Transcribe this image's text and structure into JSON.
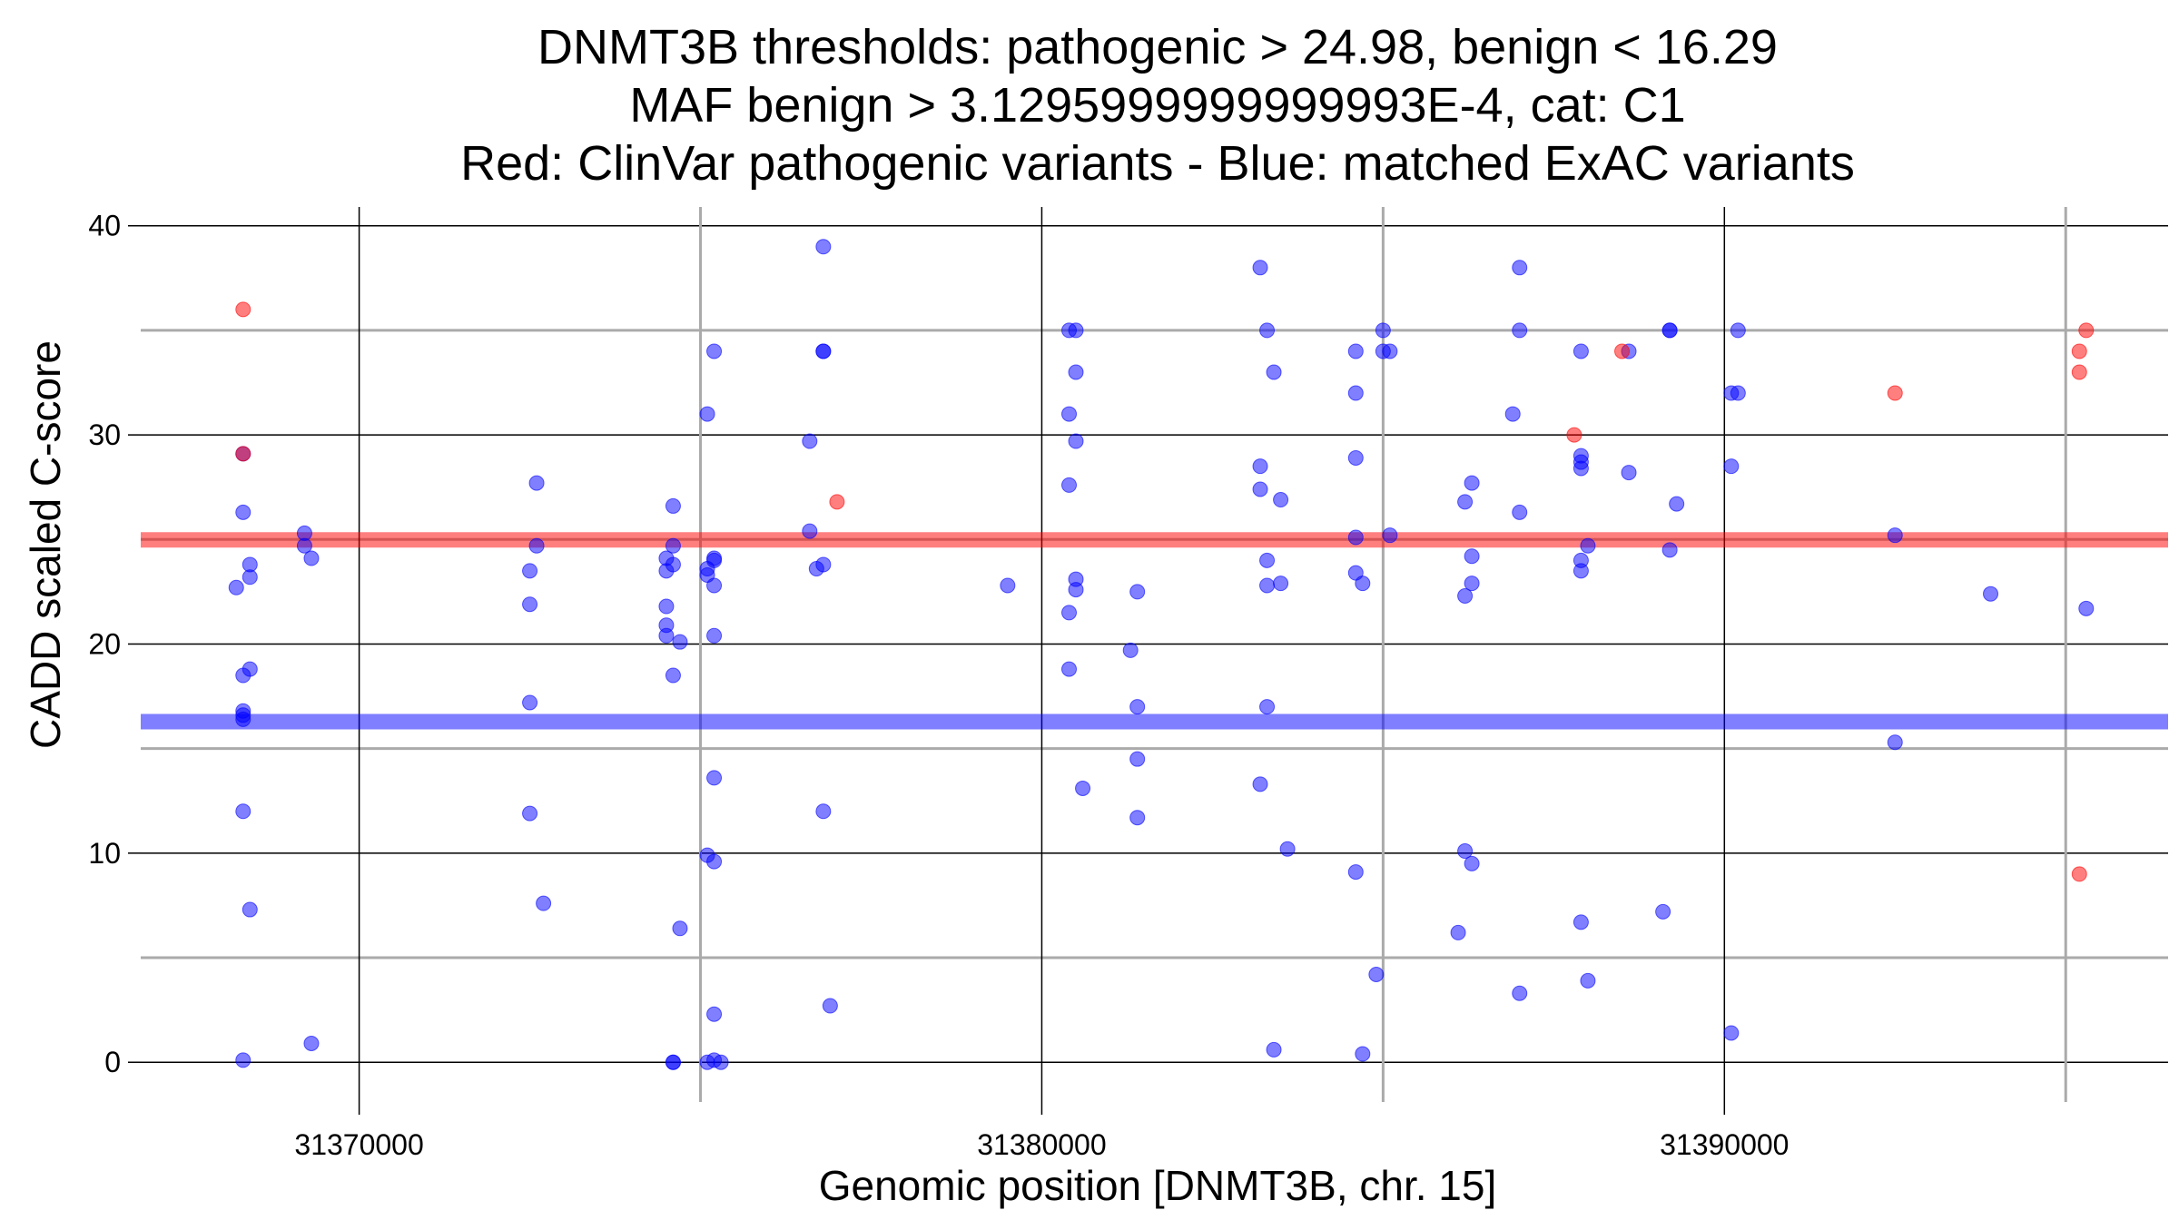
{
  "chart_data": {
    "type": "scatter",
    "title": [
      "DNMT3B thresholds: pathogenic > 24.98, benign < 16.29",
      "MAF benign > 3.1295999999999993E-4, cat: C1",
      "Red: ClinVar pathogenic variants - Blue: matched ExAC variants"
    ],
    "xlabel": "Genomic position [DNMT3B, chr. 15]",
    "ylabel": "CADD scaled C-score",
    "xlim": [
      31366800,
      31396500
    ],
    "ylim": [
      -1.9,
      40.9
    ],
    "x_ticks": [
      31370000,
      31380000,
      31390000
    ],
    "x_tick_labels": [
      "31370000",
      "31380000",
      "31390000"
    ],
    "y_ticks": [
      0,
      10,
      20,
      30,
      40
    ],
    "y_tick_labels": [
      "0",
      "10",
      "20",
      "30",
      "40"
    ],
    "grid": true,
    "thresholds": {
      "pathogenic": {
        "value": 24.98,
        "color": "#ff0000"
      },
      "benign": {
        "value": 16.29,
        "color": "#0000ff"
      }
    },
    "series": [
      {
        "color": "#ff0000",
        "points": [
          [
            31368300,
            36
          ],
          [
            31368300,
            29.1
          ],
          [
            31377000,
            26.8
          ],
          [
            31387800,
            30
          ],
          [
            31388500,
            34
          ],
          [
            31392500,
            32
          ],
          [
            31395300,
            35
          ],
          [
            31395200,
            34
          ],
          [
            31395200,
            33
          ],
          [
            31395200,
            9
          ]
        ]
      },
      {
        "color": "#0000ff",
        "points": [
          [
            31368300,
            29.1
          ],
          [
            31368300,
            26.3
          ],
          [
            31368400,
            23.8
          ],
          [
            31368400,
            23.2
          ],
          [
            31368200,
            22.7
          ],
          [
            31368400,
            18.8
          ],
          [
            31368300,
            18.5
          ],
          [
            31368300,
            16.8
          ],
          [
            31368300,
            16.6
          ],
          [
            31368300,
            16.4
          ],
          [
            31368300,
            12
          ],
          [
            31368400,
            7.3
          ],
          [
            31368300,
            0.1
          ],
          [
            31369200,
            25.3
          ],
          [
            31369200,
            24.7
          ],
          [
            31369300,
            24.1
          ],
          [
            31369300,
            0.9
          ],
          [
            31372600,
            27.7
          ],
          [
            31372600,
            24.7
          ],
          [
            31372500,
            23.5
          ],
          [
            31372500,
            21.9
          ],
          [
            31372500,
            17.2
          ],
          [
            31372500,
            11.9
          ],
          [
            31372700,
            7.6
          ],
          [
            31374600,
            26.6
          ],
          [
            31374600,
            24.7
          ],
          [
            31374500,
            24.1
          ],
          [
            31374600,
            23.8
          ],
          [
            31374500,
            23.5
          ],
          [
            31374500,
            21.8
          ],
          [
            31374500,
            20.9
          ],
          [
            31374500,
            20.4
          ],
          [
            31374700,
            20.1
          ],
          [
            31374600,
            18.5
          ],
          [
            31374700,
            6.4
          ],
          [
            31374600,
            0
          ],
          [
            31374600,
            0
          ],
          [
            31375100,
            31
          ],
          [
            31375200,
            34
          ],
          [
            31375200,
            24
          ],
          [
            31375200,
            24.1
          ],
          [
            31375100,
            23.6
          ],
          [
            31375100,
            23.3
          ],
          [
            31375200,
            22.8
          ],
          [
            31375200,
            20.4
          ],
          [
            31375200,
            13.6
          ],
          [
            31375100,
            9.9
          ],
          [
            31375200,
            9.6
          ],
          [
            31375200,
            2.3
          ],
          [
            31375100,
            0
          ],
          [
            31375200,
            0.1
          ],
          [
            31375300,
            0
          ],
          [
            31376800,
            39
          ],
          [
            31376800,
            34
          ],
          [
            31376800,
            34
          ],
          [
            31376600,
            29.7
          ],
          [
            31376600,
            25.4
          ],
          [
            31376700,
            23.6
          ],
          [
            31376800,
            23.8
          ],
          [
            31376800,
            12
          ],
          [
            31376900,
            2.7
          ],
          [
            31379500,
            22.8
          ],
          [
            31380400,
            35
          ],
          [
            31380500,
            35
          ],
          [
            31380500,
            33
          ],
          [
            31380400,
            31
          ],
          [
            31380500,
            29.7
          ],
          [
            31380400,
            27.6
          ],
          [
            31380500,
            23.1
          ],
          [
            31380500,
            22.6
          ],
          [
            31380400,
            21.5
          ],
          [
            31380400,
            18.8
          ],
          [
            31380600,
            13.1
          ],
          [
            31381400,
            22.5
          ],
          [
            31381300,
            19.7
          ],
          [
            31381400,
            17
          ],
          [
            31381400,
            14.5
          ],
          [
            31381400,
            11.7
          ],
          [
            31383200,
            38
          ],
          [
            31383300,
            35
          ],
          [
            31383400,
            33
          ],
          [
            31383200,
            28.5
          ],
          [
            31383200,
            27.4
          ],
          [
            31383500,
            26.9
          ],
          [
            31383300,
            24
          ],
          [
            31383300,
            22.8
          ],
          [
            31383500,
            22.9
          ],
          [
            31383300,
            17
          ],
          [
            31383200,
            13.3
          ],
          [
            31383600,
            10.2
          ],
          [
            31383400,
            0.6
          ],
          [
            31384600,
            34
          ],
          [
            31384600,
            32
          ],
          [
            31384600,
            28.9
          ],
          [
            31384600,
            25.1
          ],
          [
            31384600,
            23.4
          ],
          [
            31384700,
            22.9
          ],
          [
            31384600,
            9.1
          ],
          [
            31384700,
            0.4
          ],
          [
            31384900,
            4.2
          ],
          [
            31385000,
            35
          ],
          [
            31385000,
            34
          ],
          [
            31385100,
            34
          ],
          [
            31385100,
            25.2
          ],
          [
            31386300,
            27.7
          ],
          [
            31386200,
            26.8
          ],
          [
            31386300,
            24.2
          ],
          [
            31386300,
            22.9
          ],
          [
            31386200,
            22.3
          ],
          [
            31386200,
            10.1
          ],
          [
            31386300,
            9.5
          ],
          [
            31386100,
            6.2
          ],
          [
            31387000,
            38
          ],
          [
            31387000,
            35
          ],
          [
            31386900,
            31
          ],
          [
            31387000,
            26.3
          ],
          [
            31387000,
            3.3
          ],
          [
            31387900,
            34
          ],
          [
            31387900,
            29
          ],
          [
            31387900,
            28.7
          ],
          [
            31387900,
            28.4
          ],
          [
            31388000,
            24.7
          ],
          [
            31387900,
            24
          ],
          [
            31387900,
            23.5
          ],
          [
            31387900,
            6.7
          ],
          [
            31388000,
            3.9
          ],
          [
            31388600,
            34
          ],
          [
            31388600,
            28.2
          ],
          [
            31389200,
            35
          ],
          [
            31389200,
            35
          ],
          [
            31389300,
            26.7
          ],
          [
            31389200,
            24.5
          ],
          [
            31389100,
            7.2
          ],
          [
            31390200,
            35
          ],
          [
            31390100,
            32
          ],
          [
            31390200,
            32
          ],
          [
            31390100,
            28.5
          ],
          [
            31390100,
            1.4
          ],
          [
            31392500,
            25.2
          ],
          [
            31392500,
            15.3
          ],
          [
            31393900,
            22.4
          ],
          [
            31395300,
            21.7
          ]
        ]
      }
    ]
  }
}
